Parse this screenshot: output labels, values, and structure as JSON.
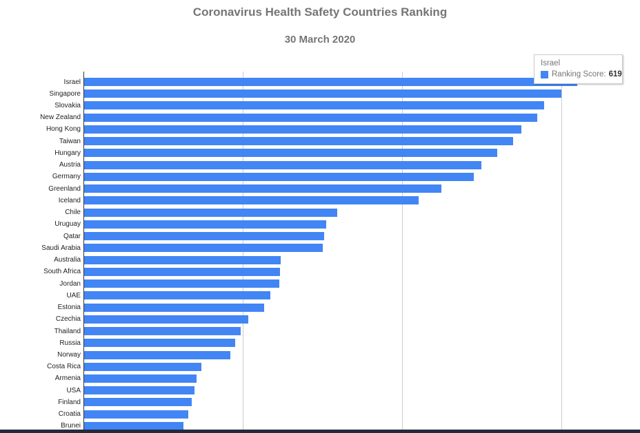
{
  "header": {
    "title": "Coronavirus Health Safety Countries Ranking",
    "subtitle": "30 March 2020"
  },
  "tooltip": {
    "country": "Israel",
    "series_label": "Ranking Score:",
    "value": "619",
    "swatch_color": "#4285F4"
  },
  "colors": {
    "bar": "#4285F4",
    "title_text": "#757575",
    "axis_line": "#333333",
    "gridline": "#cccccc",
    "label_text": "#222222",
    "bottom_band": "#222b3c"
  },
  "chart_data": {
    "type": "bar",
    "orientation": "horizontal",
    "title": "Coronavirus Health Safety Countries Ranking",
    "subtitle": "30 March 2020",
    "series_name": "Ranking Score",
    "categories": [
      "Israel",
      "Singapore",
      "Slovakia",
      "New Zealand",
      "Hong Kong",
      "Taiwan",
      "Hungary",
      "Austria",
      "Germany",
      "Greenland",
      "Iceland",
      "Chile",
      "Uruguay",
      "Qatar",
      "Saudi Arabia",
      "Australia",
      "South Africa",
      "Jordan",
      "UAE",
      "Estonia",
      "Czechia",
      "Thailand",
      "Russia",
      "Norway",
      "Costa Rica",
      "Armenia",
      "USA",
      "Finland",
      "Croatia",
      "Brunei"
    ],
    "values": [
      619,
      599,
      578,
      569,
      549,
      539,
      519,
      499,
      489,
      449,
      420,
      318,
      304,
      301,
      300,
      247,
      246,
      245,
      234,
      226,
      206,
      197,
      190,
      184,
      147,
      141,
      139,
      135,
      131,
      125
    ],
    "xlim": [
      0,
      698
    ],
    "gridlines_x": [
      200,
      400,
      600
    ],
    "grid": true,
    "legend_position": "none",
    "highlighted_category": "Israel",
    "ylabel": "",
    "xlabel": ""
  }
}
